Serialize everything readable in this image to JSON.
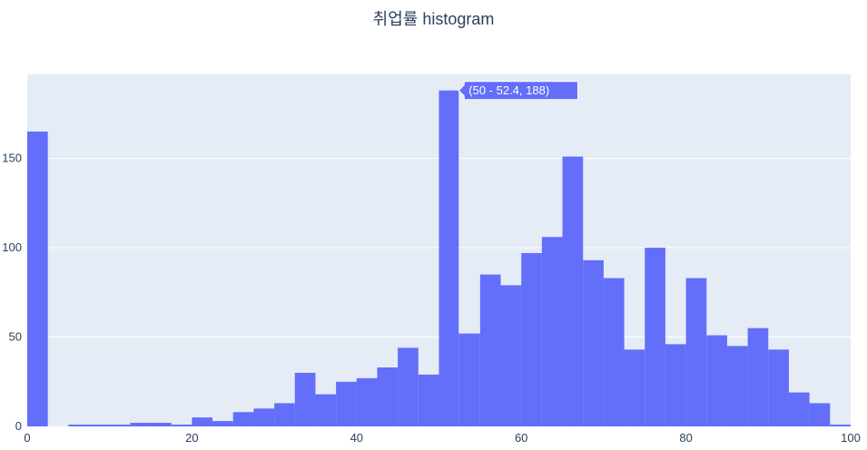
{
  "chart_data": {
    "type": "bar",
    "title": "취업률 histogram",
    "xlabel": "",
    "ylabel": "",
    "xlim": [
      0,
      100
    ],
    "ylim": [
      0,
      197
    ],
    "bar_color": "#636efa",
    "plot_bg": "#e5ecf6",
    "bins": [
      {
        "x0": 0,
        "x1": 2.5,
        "y": 165
      },
      {
        "x0": 2.5,
        "x1": 5,
        "y": 0
      },
      {
        "x0": 5,
        "x1": 7.5,
        "y": 1
      },
      {
        "x0": 7.5,
        "x1": 10,
        "y": 1
      },
      {
        "x0": 10,
        "x1": 12.5,
        "y": 1
      },
      {
        "x0": 12.5,
        "x1": 15,
        "y": 2
      },
      {
        "x0": 15,
        "x1": 17.5,
        "y": 2
      },
      {
        "x0": 17.5,
        "x1": 20,
        "y": 1
      },
      {
        "x0": 20,
        "x1": 22.5,
        "y": 5
      },
      {
        "x0": 22.5,
        "x1": 25,
        "y": 3
      },
      {
        "x0": 25,
        "x1": 27.5,
        "y": 8
      },
      {
        "x0": 27.5,
        "x1": 30,
        "y": 10
      },
      {
        "x0": 30,
        "x1": 32.5,
        "y": 13
      },
      {
        "x0": 32.5,
        "x1": 35,
        "y": 30
      },
      {
        "x0": 35,
        "x1": 37.5,
        "y": 18
      },
      {
        "x0": 37.5,
        "x1": 40,
        "y": 25
      },
      {
        "x0": 40,
        "x1": 42.5,
        "y": 27
      },
      {
        "x0": 42.5,
        "x1": 45,
        "y": 33
      },
      {
        "x0": 45,
        "x1": 47.5,
        "y": 44
      },
      {
        "x0": 47.5,
        "x1": 50,
        "y": 29
      },
      {
        "x0": 50,
        "x1": 52.4,
        "y": 188
      },
      {
        "x0": 52.4,
        "x1": 55,
        "y": 52
      },
      {
        "x0": 55,
        "x1": 57.5,
        "y": 85
      },
      {
        "x0": 57.5,
        "x1": 60,
        "y": 79
      },
      {
        "x0": 60,
        "x1": 62.5,
        "y": 97
      },
      {
        "x0": 62.5,
        "x1": 65,
        "y": 106
      },
      {
        "x0": 65,
        "x1": 67.5,
        "y": 151
      },
      {
        "x0": 67.5,
        "x1": 70,
        "y": 93
      },
      {
        "x0": 70,
        "x1": 72.5,
        "y": 83
      },
      {
        "x0": 72.5,
        "x1": 75,
        "y": 43
      },
      {
        "x0": 75,
        "x1": 77.5,
        "y": 100
      },
      {
        "x0": 77.5,
        "x1": 80,
        "y": 46
      },
      {
        "x0": 80,
        "x1": 82.5,
        "y": 83
      },
      {
        "x0": 82.5,
        "x1": 85,
        "y": 51
      },
      {
        "x0": 85,
        "x1": 87.5,
        "y": 45
      },
      {
        "x0": 87.5,
        "x1": 90,
        "y": 55
      },
      {
        "x0": 90,
        "x1": 92.5,
        "y": 43
      },
      {
        "x0": 92.5,
        "x1": 95,
        "y": 19
      },
      {
        "x0": 95,
        "x1": 97.5,
        "y": 13
      },
      {
        "x0": 97.5,
        "x1": 100,
        "y": 1
      }
    ],
    "xticks": [
      0,
      20,
      40,
      60,
      80,
      100
    ],
    "yticks": [
      0,
      50,
      100,
      150
    ],
    "tooltip": {
      "text": "(50 - 52.4, 188)",
      "bin_index": 20
    }
  }
}
